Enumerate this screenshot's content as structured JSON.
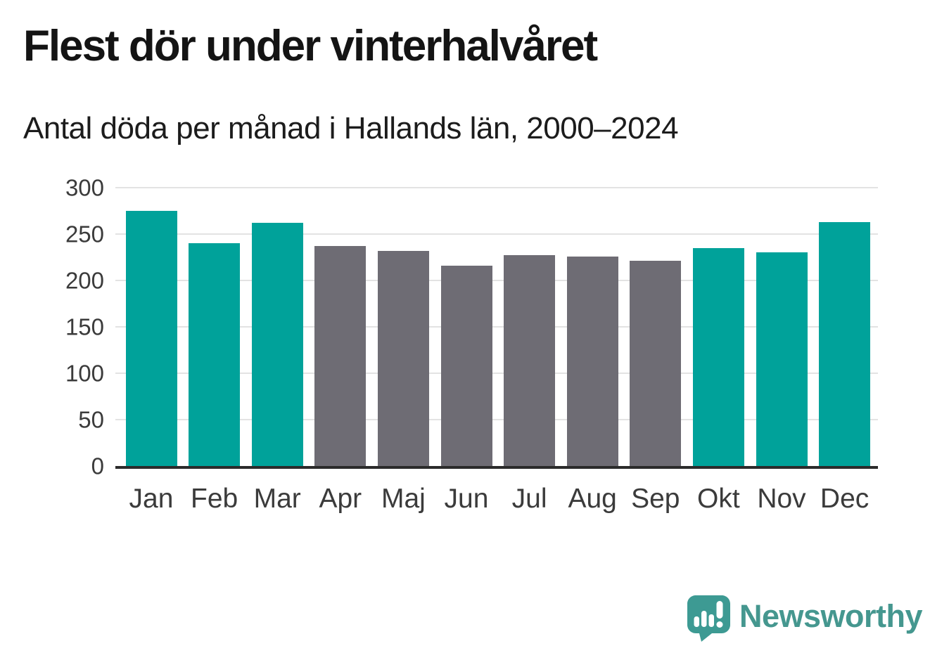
{
  "chart_data": {
    "type": "bar",
    "title": "Flest dör under vinterhalvåret",
    "subtitle": "Antal döda per månad i Hallands län, 2000–2024",
    "categories": [
      "Jan",
      "Feb",
      "Mar",
      "Apr",
      "Maj",
      "Jun",
      "Jul",
      "Aug",
      "Sep",
      "Okt",
      "Nov",
      "Dec"
    ],
    "values": [
      275,
      240,
      262,
      237,
      232,
      216,
      227,
      226,
      221,
      235,
      230,
      263
    ],
    "bar_groups": [
      "winter",
      "winter",
      "winter",
      "summer",
      "summer",
      "summer",
      "summer",
      "summer",
      "summer",
      "winter",
      "winter",
      "winter"
    ],
    "group_colors": {
      "winter": "#00a29a",
      "summer": "#6e6c74"
    },
    "xlabel": "",
    "ylabel": "",
    "ylim": [
      0,
      300
    ],
    "yticks": [
      0,
      50,
      100,
      150,
      200,
      250,
      300
    ],
    "grid": "horizontal",
    "legend": "none",
    "gridline_color": "#e3e3e3",
    "axis_color": "#2b2b2b",
    "tick_label_color": "#3b3b3b"
  },
  "branding": {
    "name": "Newsworthy",
    "logo_icon": "bar-chart-speech-bubble",
    "wordmark_color": "#45978f",
    "icon_color": "#3d9a93"
  }
}
